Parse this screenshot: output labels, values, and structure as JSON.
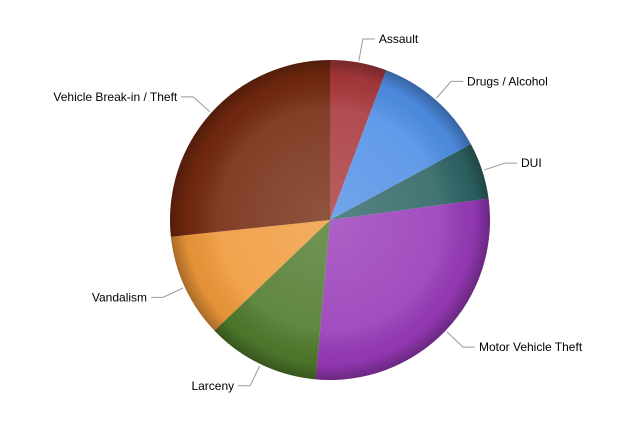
{
  "chart_data": {
    "type": "pie",
    "title": "",
    "slices": [
      {
        "label": "Assault",
        "value": 6,
        "color": "#a8383c"
      },
      {
        "label": "Drugs / Alcohol",
        "value": 12,
        "color": "#4f8fe6"
      },
      {
        "label": "DUI",
        "value": 6,
        "color": "#2e6565"
      },
      {
        "label": "Motor Vehicle Theft",
        "value": 30,
        "color": "#9839b8"
      },
      {
        "label": "Larceny",
        "value": 12,
        "color": "#4f7a2c"
      },
      {
        "label": "Vandalism",
        "value": 11,
        "color": "#f0993a"
      },
      {
        "label": "Vehicle Break-in / Theft",
        "value": 28,
        "color": "#74290f"
      }
    ],
    "start_angle_deg": 0,
    "direction": "clockwise",
    "legend": "none",
    "label_style": "outside-with-leader-lines"
  }
}
